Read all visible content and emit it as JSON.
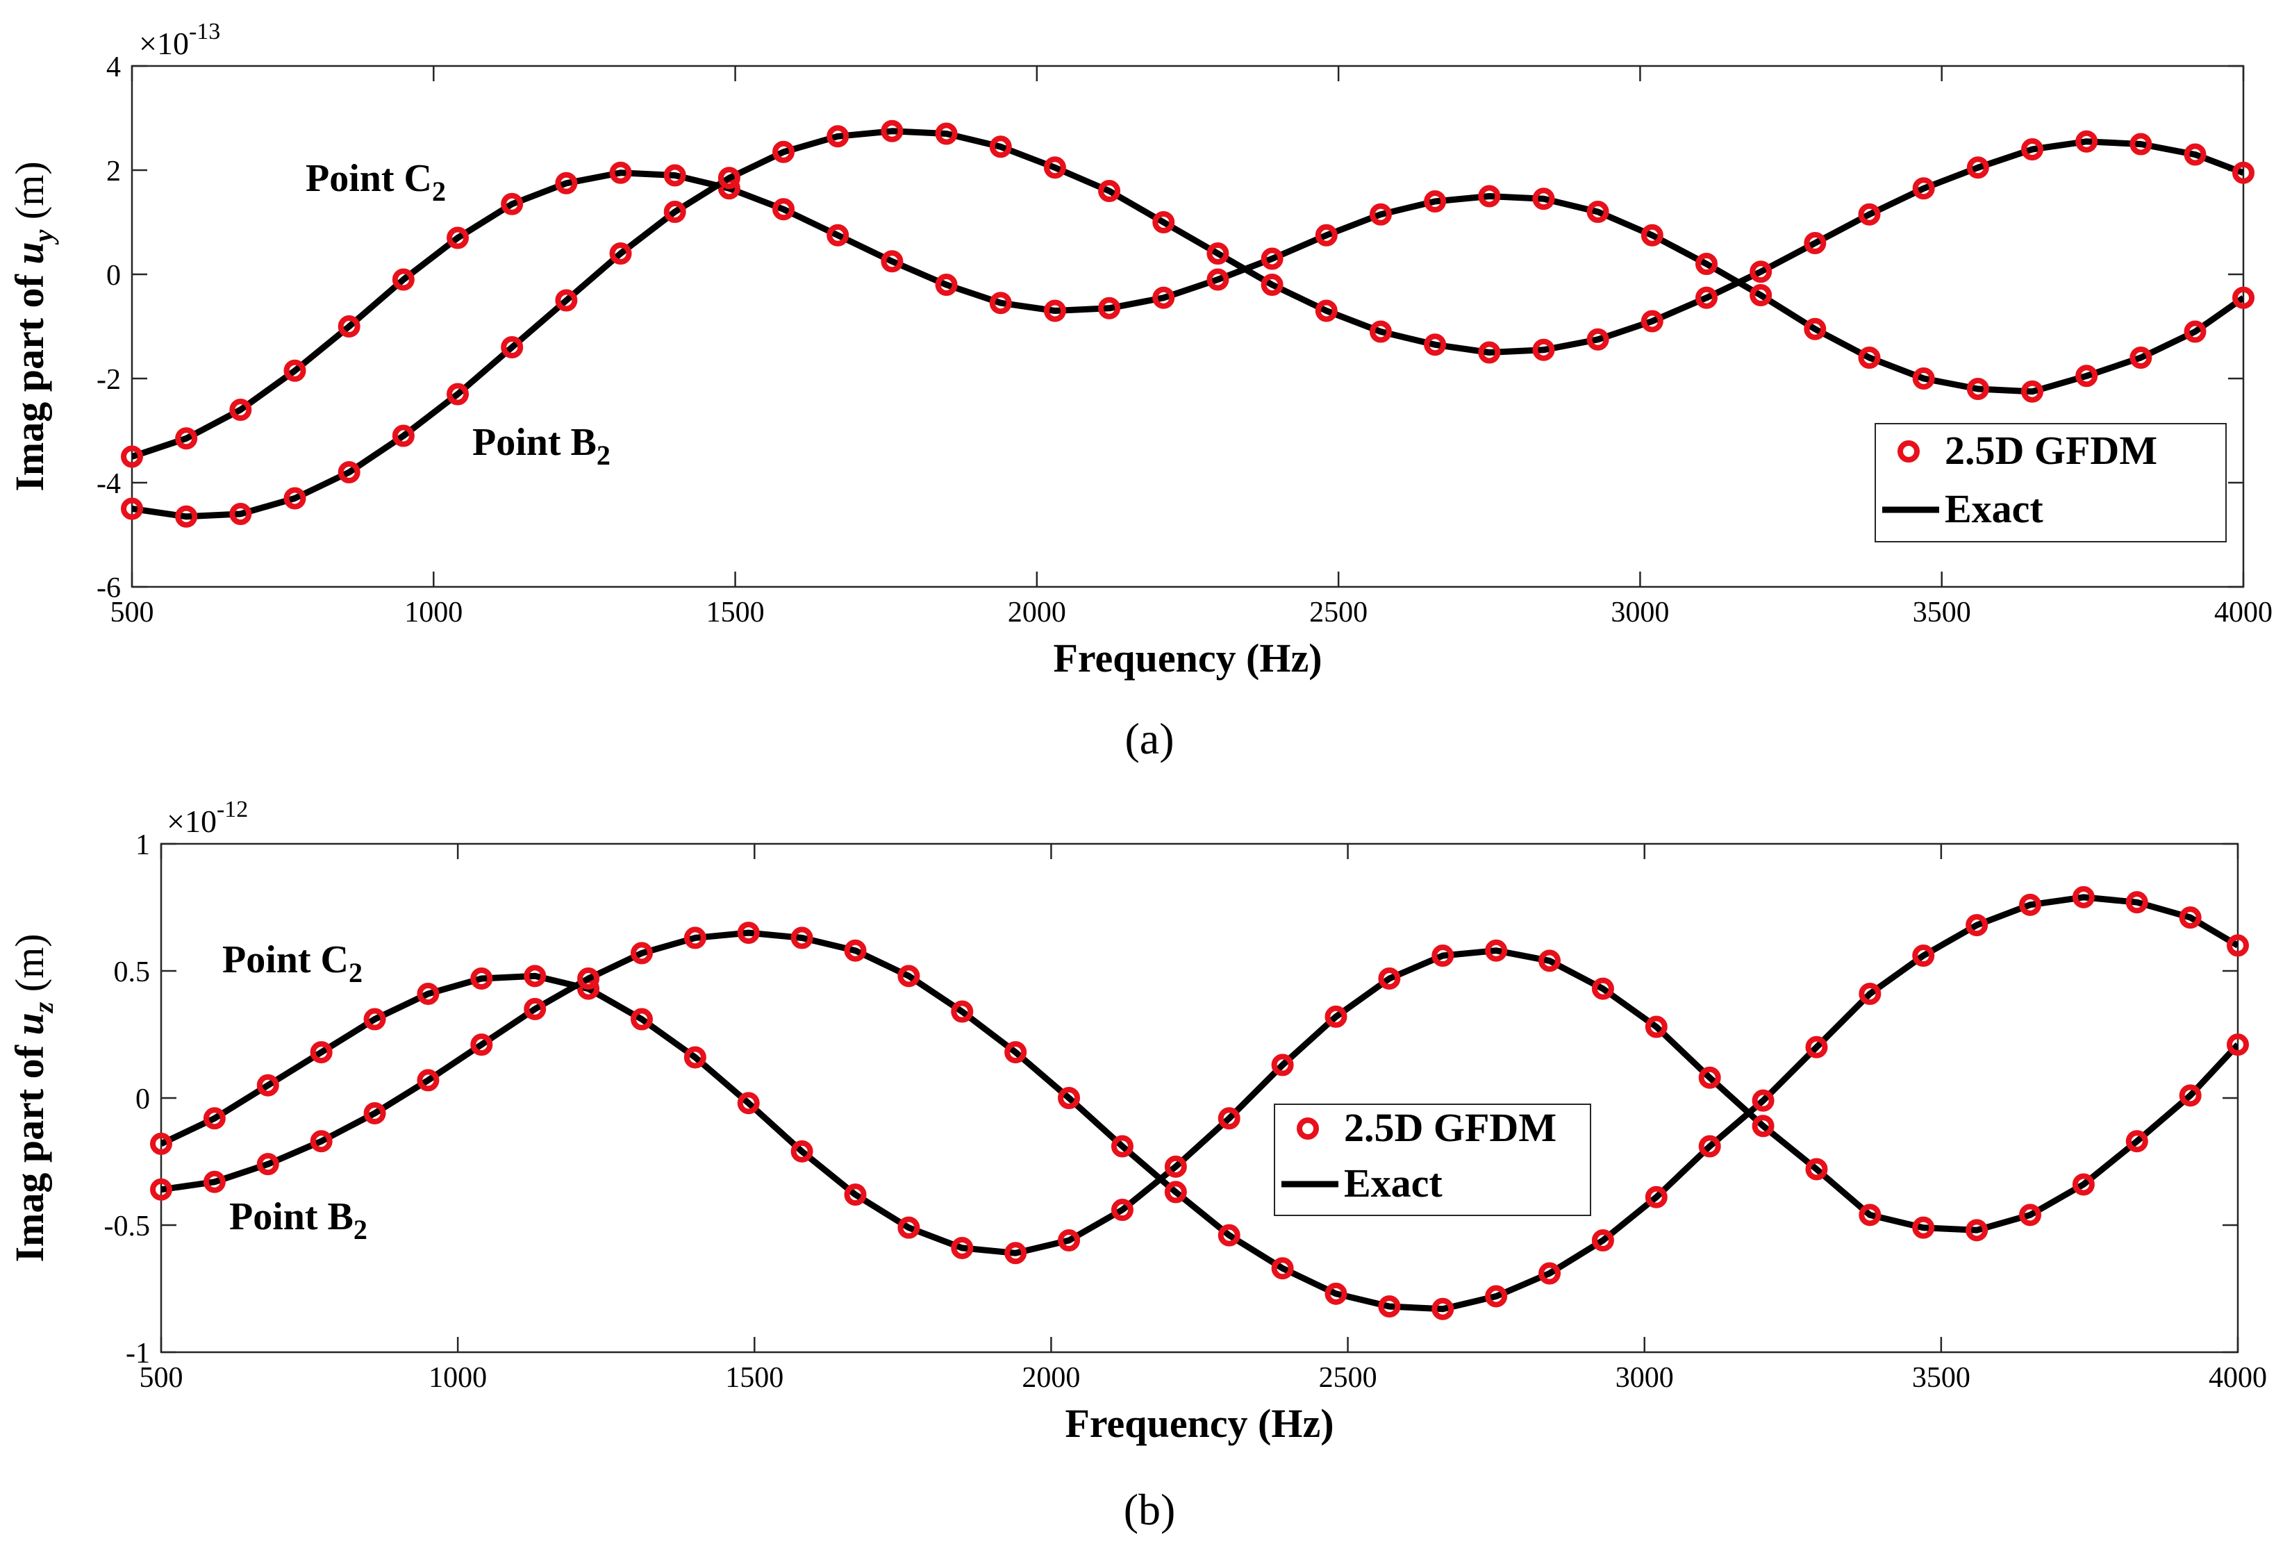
{
  "chart_data": [
    {
      "type": "line",
      "panel_label": "(a)",
      "xlabel": "Frequency (Hz)",
      "ylabel_prefix": "Imag part of ",
      "ylabel_var": "u",
      "ylabel_sub": "y",
      "ylabel_unit": " (m)",
      "multiplier_base": "×10",
      "multiplier_exp": "-13",
      "xlim": [
        500,
        4000
      ],
      "ylim": [
        -6,
        4
      ],
      "xticks": [
        500,
        1000,
        1500,
        2000,
        2500,
        3000,
        3500,
        4000
      ],
      "yticks": [
        -6,
        -4,
        -2,
        0,
        2,
        4
      ],
      "legend": {
        "position": "bottom-right",
        "entries": [
          "2.5D GFDM",
          "Exact"
        ]
      },
      "annotations": [
        {
          "text": "Point C",
          "sub": "2",
          "series": "Point C2"
        },
        {
          "text": "Point B",
          "sub": "2",
          "series": "Point B2"
        }
      ],
      "series": [
        {
          "name": "Point C2",
          "x": [
            500,
            590,
            680,
            770,
            860,
            950,
            1040,
            1130,
            1220,
            1310,
            1400,
            1490,
            1580,
            1670,
            1760,
            1850,
            1940,
            2030,
            2120,
            2210,
            2300,
            2390,
            2480,
            2570,
            2660,
            2750,
            2840,
            2930,
            3020,
            3110,
            3200,
            3290,
            3380,
            3470,
            3560,
            3650,
            3740,
            3830,
            3920,
            4000
          ],
          "y": [
            -3.5,
            -3.15,
            -2.6,
            -1.85,
            -1.0,
            -0.1,
            0.7,
            1.35,
            1.75,
            1.95,
            1.9,
            1.65,
            1.25,
            0.75,
            0.25,
            -0.2,
            -0.55,
            -0.7,
            -0.65,
            -0.45,
            -0.1,
            0.3,
            0.75,
            1.15,
            1.4,
            1.5,
            1.45,
            1.2,
            0.75,
            0.2,
            -0.4,
            -1.05,
            -1.6,
            -2.0,
            -2.2,
            -2.25,
            -1.95,
            -1.6,
            -1.1,
            -0.45
          ]
        },
        {
          "name": "Point B2",
          "x": [
            500,
            590,
            680,
            770,
            860,
            950,
            1040,
            1130,
            1220,
            1310,
            1400,
            1490,
            1580,
            1670,
            1760,
            1850,
            1940,
            2030,
            2120,
            2210,
            2300,
            2390,
            2480,
            2570,
            2660,
            2750,
            2840,
            2930,
            3020,
            3110,
            3200,
            3290,
            3380,
            3470,
            3560,
            3650,
            3740,
            3830,
            3920,
            4000
          ],
          "y": [
            -4.5,
            -4.65,
            -4.6,
            -4.3,
            -3.8,
            -3.1,
            -2.3,
            -1.4,
            -0.5,
            0.4,
            1.2,
            1.85,
            2.35,
            2.65,
            2.75,
            2.7,
            2.45,
            2.05,
            1.6,
            1.0,
            0.4,
            -0.2,
            -0.7,
            -1.1,
            -1.35,
            -1.5,
            -1.45,
            -1.25,
            -0.9,
            -0.45,
            0.05,
            0.6,
            1.15,
            1.65,
            2.05,
            2.4,
            2.55,
            2.5,
            2.3,
            1.95
          ]
        }
      ]
    },
    {
      "type": "line",
      "panel_label": "(b)",
      "xlabel": "Frequency (Hz)",
      "ylabel_prefix": "Imag part of ",
      "ylabel_var": "u",
      "ylabel_sub": "z",
      "ylabel_unit": " (m)",
      "multiplier_base": "×10",
      "multiplier_exp": "-12",
      "xlim": [
        500,
        4000
      ],
      "ylim": [
        -1,
        1
      ],
      "xticks": [
        500,
        1000,
        1500,
        2000,
        2500,
        3000,
        3500,
        4000
      ],
      "yticks": [
        -1,
        -0.5,
        0,
        0.5,
        1
      ],
      "ytick_labels": [
        "-1",
        "-0.5",
        "0",
        "0.5",
        "1"
      ],
      "legend": {
        "position": "center",
        "entries": [
          "2.5D GFDM",
          "Exact"
        ]
      },
      "annotations": [
        {
          "text": "Point C",
          "sub": "2",
          "series": "Point C2"
        },
        {
          "text": "Point B",
          "sub": "2",
          "series": "Point B2"
        }
      ],
      "series": [
        {
          "name": "Point C2",
          "x": [
            500,
            590,
            680,
            770,
            860,
            950,
            1040,
            1130,
            1220,
            1310,
            1400,
            1490,
            1580,
            1670,
            1760,
            1850,
            1940,
            2030,
            2120,
            2210,
            2300,
            2390,
            2480,
            2570,
            2660,
            2750,
            2840,
            2930,
            3020,
            3110,
            3200,
            3290,
            3380,
            3470,
            3560,
            3650,
            3740,
            3830,
            3920,
            4000
          ],
          "y": [
            -0.18,
            -0.08,
            0.05,
            0.18,
            0.31,
            0.41,
            0.47,
            0.48,
            0.43,
            0.31,
            0.16,
            -0.02,
            -0.21,
            -0.38,
            -0.51,
            -0.59,
            -0.61,
            -0.56,
            -0.44,
            -0.27,
            -0.08,
            0.13,
            0.32,
            0.47,
            0.56,
            0.58,
            0.54,
            0.43,
            0.28,
            0.08,
            -0.11,
            -0.28,
            -0.46,
            -0.51,
            -0.52,
            -0.46,
            -0.34,
            -0.17,
            0.01,
            0.21
          ]
        },
        {
          "name": "Point B2",
          "x": [
            500,
            590,
            680,
            770,
            860,
            950,
            1040,
            1130,
            1220,
            1310,
            1400,
            1490,
            1580,
            1670,
            1760,
            1850,
            1940,
            2030,
            2120,
            2210,
            2300,
            2390,
            2480,
            2570,
            2660,
            2750,
            2840,
            2930,
            3020,
            3110,
            3200,
            3290,
            3380,
            3470,
            3560,
            3650,
            3740,
            3830,
            3920,
            4000
          ],
          "y": [
            -0.36,
            -0.33,
            -0.26,
            -0.17,
            -0.06,
            0.07,
            0.21,
            0.35,
            0.47,
            0.57,
            0.63,
            0.65,
            0.63,
            0.58,
            0.48,
            0.34,
            0.18,
            0.0,
            -0.19,
            -0.37,
            -0.54,
            -0.67,
            -0.77,
            -0.82,
            -0.83,
            -0.78,
            -0.69,
            -0.56,
            -0.39,
            -0.19,
            -0.01,
            0.2,
            0.41,
            0.56,
            0.68,
            0.76,
            0.79,
            0.77,
            0.71,
            0.6
          ]
        }
      ]
    }
  ]
}
